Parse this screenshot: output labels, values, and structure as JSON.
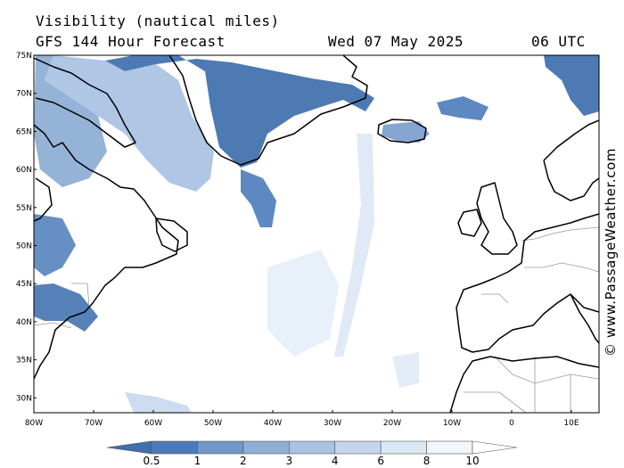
{
  "header": {
    "title": "Visibility (nautical miles)",
    "subtitle": "GFS 144 Hour Forecast",
    "date": "Wed 07 May 2025",
    "time": "06 UTC"
  },
  "credit": "© www.PassageWeather.com",
  "map": {
    "lat_labels": [
      "75N",
      "70N",
      "65N",
      "60N",
      "55N",
      "50N",
      "45N",
      "40N",
      "35N",
      "30N"
    ],
    "lon_labels": [
      "80W",
      "70W",
      "60W",
      "50W",
      "40W",
      "30W",
      "20W",
      "10W",
      "0",
      "10E"
    ]
  },
  "legend": {
    "labels": [
      "0.5",
      "1",
      "2",
      "3",
      "4",
      "6",
      "8",
      "10"
    ],
    "colors": [
      "#3f6fae",
      "#4b7bba",
      "#6f97c9",
      "#8eafd6",
      "#a9c2e2",
      "#c4d6ed",
      "#dde8f5",
      "#f2f6fb",
      "#ffffff"
    ]
  },
  "palette": {
    "fog_dark": "#3f6fae",
    "fog_mid": "#7a9fcd",
    "fog_light": "#c4d6ed",
    "coast": "#000000",
    "border": "#9a9a9a"
  }
}
